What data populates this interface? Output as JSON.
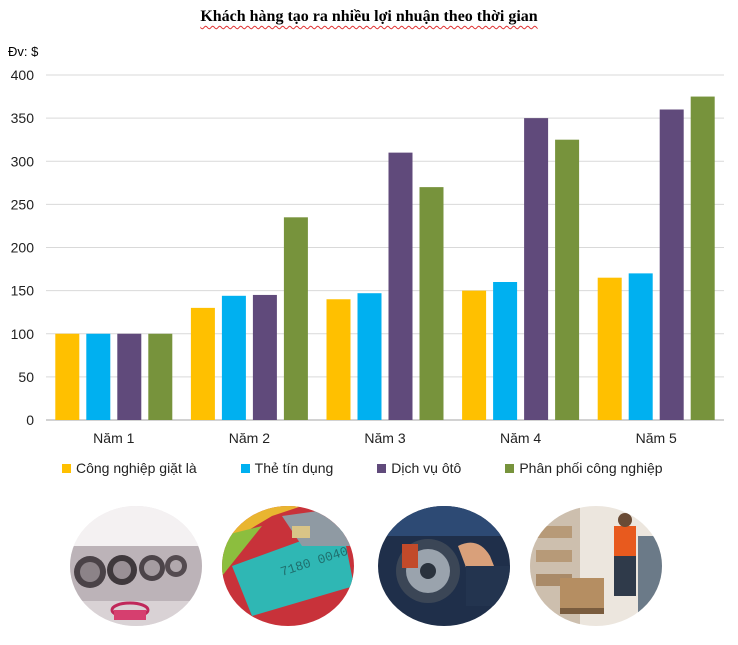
{
  "chart_data": {
    "type": "bar",
    "title": "Khách hàng tạo ra nhiều lợi nhuận theo thời gian",
    "unit_label": "Đv: $",
    "categories": [
      "Năm 1",
      "Năm 2",
      "Năm 3",
      "Năm 4",
      "Năm 5"
    ],
    "ylim": [
      0,
      400
    ],
    "yticks": [
      "0",
      "50",
      "100",
      "150",
      "200",
      "250",
      "300",
      "350",
      "400"
    ],
    "grid": true,
    "legend_position": "bottom",
    "series": [
      {
        "name": "Công nghiệp giặt là",
        "color": "#FFC000",
        "values": [
          100,
          130,
          140,
          150,
          165
        ]
      },
      {
        "name": "Thẻ tín dụng",
        "color": "#00B0F0",
        "values": [
          100,
          144,
          147,
          160,
          170
        ]
      },
      {
        "name": "Dịch vụ ôtô",
        "color": "#604A7B",
        "values": [
          100,
          145,
          310,
          350,
          360
        ]
      },
      {
        "name": "Phân phối công nghiệp",
        "color": "#77933C",
        "values": [
          100,
          235,
          270,
          325,
          375
        ]
      }
    ]
  },
  "images": [
    {
      "icon": "laundry-machines-photo"
    },
    {
      "icon": "credit-cards-photo",
      "card_number": "7180 0040"
    },
    {
      "icon": "car-brake-repair-photo"
    },
    {
      "icon": "warehouse-worker-photo"
    }
  ]
}
